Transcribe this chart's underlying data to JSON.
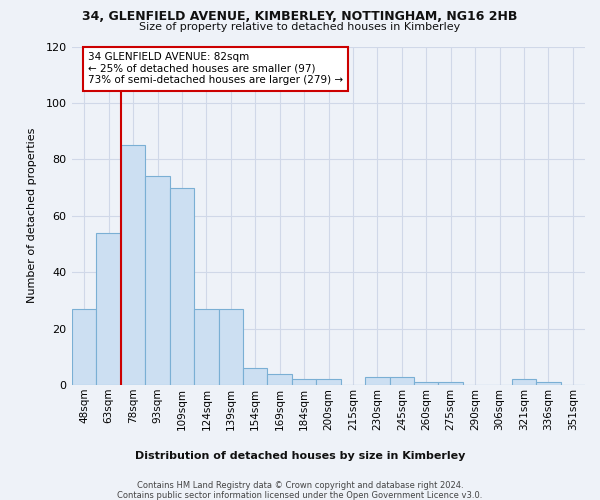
{
  "title1": "34, GLENFIELD AVENUE, KIMBERLEY, NOTTINGHAM, NG16 2HB",
  "title2": "Size of property relative to detached houses in Kimberley",
  "xlabel": "Distribution of detached houses by size in Kimberley",
  "ylabel": "Number of detached properties",
  "footer1": "Contains HM Land Registry data © Crown copyright and database right 2024.",
  "footer2": "Contains public sector information licensed under the Open Government Licence v3.0.",
  "bar_labels": [
    "48sqm",
    "63sqm",
    "78sqm",
    "93sqm",
    "109sqm",
    "124sqm",
    "139sqm",
    "154sqm",
    "169sqm",
    "184sqm",
    "200sqm",
    "215sqm",
    "230sqm",
    "245sqm",
    "260sqm",
    "275sqm",
    "290sqm",
    "306sqm",
    "321sqm",
    "336sqm",
    "351sqm"
  ],
  "bar_values": [
    27,
    54,
    85,
    74,
    70,
    27,
    27,
    6,
    4,
    2,
    2,
    0,
    3,
    3,
    1,
    1,
    0,
    0,
    2,
    1,
    0
  ],
  "bar_color": "#ccdff2",
  "bar_edge_color": "#7aafd4",
  "ylim_max": 120,
  "yticks": [
    0,
    20,
    40,
    60,
    80,
    100,
    120
  ],
  "red_line_color": "#cc0000",
  "annotation_line1": "34 GLENFIELD AVENUE: 82sqm",
  "annotation_line2": "← 25% of detached houses are smaller (97)",
  "annotation_line3": "73% of semi-detached houses are larger (279) →",
  "annotation_box_fc": "#ffffff",
  "annotation_box_ec": "#cc0000",
  "bg_color": "#eef2f8",
  "grid_color": "#d0d8e8"
}
